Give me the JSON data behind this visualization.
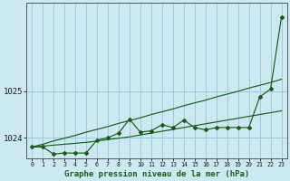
{
  "title": "Graphe pression niveau de la mer (hPa)",
  "bg_color": "#cce8f0",
  "grid_color": "#99cce0",
  "line_color": "#1a5c1a",
  "x_ticks": [
    0,
    1,
    2,
    3,
    4,
    5,
    6,
    7,
    8,
    9,
    10,
    11,
    12,
    13,
    14,
    15,
    16,
    17,
    18,
    19,
    20,
    21,
    22,
    23
  ],
  "ylim": [
    1023.55,
    1026.9
  ],
  "yticks": [
    1024,
    1025
  ],
  "series": {
    "main": [
      1023.8,
      1023.8,
      1023.65,
      1023.67,
      1023.67,
      1023.67,
      1023.95,
      1024.0,
      1024.1,
      1024.4,
      1024.12,
      1024.15,
      1024.28,
      1024.22,
      1024.38,
      1024.22,
      1024.17,
      1024.22,
      1024.22,
      1024.22,
      1024.22,
      1024.88,
      1025.05,
      1026.6
    ],
    "line1": [
      1023.8,
      1023.86,
      1023.93,
      1023.99,
      1024.05,
      1024.12,
      1024.18,
      1024.24,
      1024.31,
      1024.37,
      1024.43,
      1024.5,
      1024.56,
      1024.62,
      1024.69,
      1024.75,
      1024.81,
      1024.88,
      1024.94,
      1025.0,
      1025.07,
      1025.13,
      1025.19,
      1025.26
    ],
    "line2": [
      1023.8,
      1023.82,
      1023.84,
      1023.86,
      1023.88,
      1023.9,
      1023.93,
      1023.96,
      1023.99,
      1024.02,
      1024.06,
      1024.1,
      1024.14,
      1024.18,
      1024.22,
      1024.26,
      1024.3,
      1024.34,
      1024.38,
      1024.42,
      1024.46,
      1024.5,
      1024.54,
      1024.58
    ]
  }
}
